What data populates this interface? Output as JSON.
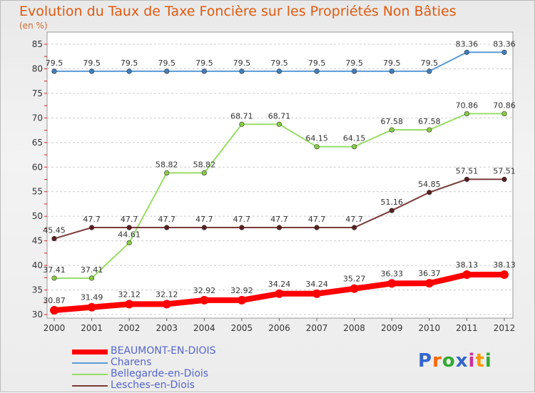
{
  "title": "Evolution du Taux de Taxe Foncière sur les Propriétés Non Bâties",
  "unit_label": "(en %)",
  "logo_text": "Proxiti",
  "chart_data": {
    "type": "line",
    "x": [
      "2000",
      "2001",
      "2002",
      "2003",
      "2004",
      "2005",
      "2006",
      "2007",
      "2008",
      "2009",
      "2010",
      "2011",
      "2012"
    ],
    "ylim": [
      30,
      85
    ],
    "yticks": [
      30,
      35,
      40,
      45,
      50,
      55,
      60,
      65,
      70,
      75,
      80,
      85
    ],
    "grid": "horizontal-dashed",
    "legend_position": "bottom-left",
    "series": [
      {
        "name": "BEAUMONT-EN-DIOIS",
        "color": "#ff0000",
        "labels": [
          "30.87",
          "31.49",
          "32.12",
          "32.12",
          "32.92",
          "32.92",
          "34.24",
          "34.24",
          "35.27",
          "36.33",
          "36.37",
          "38.13",
          "38.13"
        ],
        "values": [
          30.87,
          31.49,
          32.12,
          32.12,
          32.92,
          32.92,
          34.24,
          34.24,
          35.27,
          36.33,
          36.37,
          38.13,
          38.13
        ]
      },
      {
        "name": "Charens",
        "color": "#5b9bd5",
        "labels": [
          "79.5",
          "79.5",
          "79.5",
          "79.5",
          "79.5",
          "79.5",
          "79.5",
          "79.5",
          "79.5",
          "79.5",
          "79.5",
          "83.36",
          "83.36"
        ],
        "values": [
          79.5,
          79.5,
          79.5,
          79.5,
          79.5,
          79.5,
          79.5,
          79.5,
          79.5,
          79.5,
          79.5,
          83.36,
          83.36
        ]
      },
      {
        "name": "Bellegarde-en-Diois",
        "color": "#99dd66",
        "labels": [
          "37.41",
          "37.41",
          "44.61",
          "58.82",
          "58.82",
          "68.71",
          "68.71",
          "64.15",
          "64.15",
          "67.58",
          "67.58",
          "70.86",
          "70.86"
        ],
        "values": [
          37.41,
          37.41,
          44.61,
          58.82,
          58.82,
          68.71,
          68.71,
          64.15,
          64.15,
          67.58,
          67.58,
          70.86,
          70.86
        ]
      },
      {
        "name": "Lesches-en-Diois",
        "color": "#7a3a3a",
        "labels": [
          "45.45",
          "47.7",
          "47.7",
          "47.7",
          "47.7",
          "47.7",
          "47.7",
          "47.7",
          "47.7",
          "51.16",
          "54.85",
          "57.51",
          "57.51"
        ],
        "values": [
          45.45,
          47.7,
          47.7,
          47.7,
          47.7,
          47.7,
          47.7,
          47.7,
          47.7,
          51.16,
          54.85,
          57.51,
          57.51
        ]
      }
    ]
  }
}
